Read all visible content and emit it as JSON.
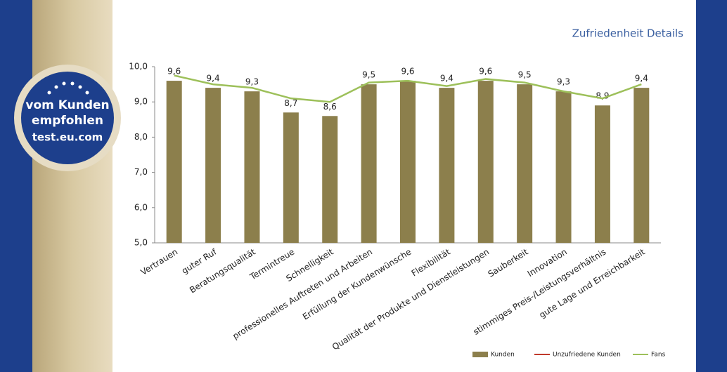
{
  "chart_data": {
    "type": "bar",
    "title": "Zufriedenheit Details",
    "categories": [
      "Vertrauen",
      "guter Ruf",
      "Beratungsqualität",
      "Termintreue",
      "Schnelligkeit",
      "professionelles Auftreten und Arbeiten",
      "Erfüllung der Kundenwünsche",
      "Flexibilität",
      "Qualität der Produkte und Dienstleistungen",
      "Sauberkeit",
      "Innovation",
      "stimmiges Preis-/Leistungsverhältnis",
      "gute Lage und Erreichbarkeit"
    ],
    "series": [
      {
        "name": "Kunden",
        "type": "bar",
        "color": "#8c7f4c",
        "values": [
          9.6,
          9.4,
          9.3,
          8.7,
          8.6,
          9.5,
          9.6,
          9.4,
          9.6,
          9.5,
          9.3,
          8.9,
          9.4
        ],
        "value_labels": [
          "9,6",
          "9,4",
          "9,3",
          "8,7",
          "8,6",
          "9,5",
          "9,6",
          "9,4",
          "9,6",
          "9,5",
          "9,3",
          "8,9",
          "9,4"
        ]
      },
      {
        "name": "Unzufriedene Kunden",
        "type": "line",
        "color": "#c0392b",
        "values": [
          null,
          null,
          null,
          null,
          null,
          null,
          null,
          null,
          null,
          null,
          null,
          null,
          null
        ]
      },
      {
        "name": "Fans",
        "type": "line",
        "color": "#9dc05a",
        "values": [
          9.75,
          9.5,
          9.4,
          9.1,
          9.0,
          9.55,
          9.6,
          9.45,
          9.65,
          9.55,
          9.3,
          9.1,
          9.5
        ]
      }
    ],
    "ylim": [
      5,
      10
    ],
    "yticks": [
      {
        "value": 5,
        "label": "5,0"
      },
      {
        "value": 6,
        "label": "6,0"
      },
      {
        "value": 7,
        "label": "7,0"
      },
      {
        "value": 8,
        "label": "8,0"
      },
      {
        "value": 9,
        "label": "9,0"
      },
      {
        "value": 10,
        "label": "10,0"
      }
    ],
    "grid": false,
    "legend": "bottom"
  },
  "badge": {
    "lines": [
      "vom Kunden",
      "empfohlen",
      "test.eu.com"
    ]
  }
}
